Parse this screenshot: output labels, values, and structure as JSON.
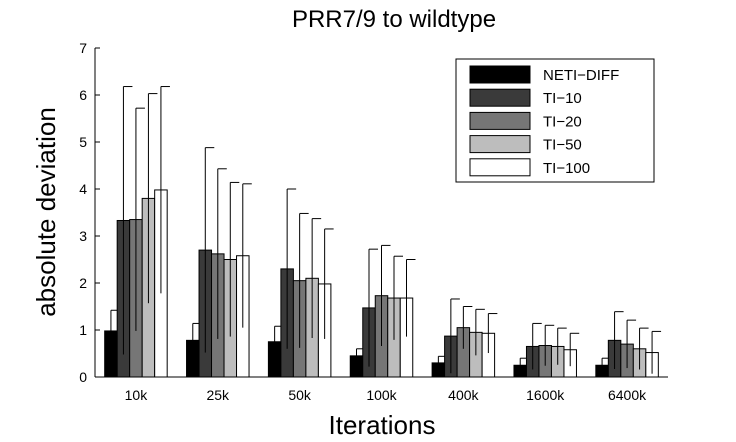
{
  "chart_data": {
    "type": "bar",
    "title": "PRR7/9 to wildtype",
    "xlabel": "Iterations",
    "ylabel": "absolute deviation",
    "ylim": [
      0,
      7
    ],
    "yticks": [
      0,
      1,
      2,
      3,
      4,
      5,
      6,
      7
    ],
    "categories": [
      "10k",
      "25k",
      "50k",
      "100k",
      "400k",
      "1600k",
      "6400k"
    ],
    "legend_position": "top-right",
    "error_bars": true,
    "series": [
      {
        "name": "NETI−DIFF",
        "color": "#000000",
        "values": [
          0.98,
          0.78,
          0.75,
          0.45,
          0.3,
          0.25,
          0.25
        ],
        "upper": [
          1.42,
          1.14,
          1.08,
          0.6,
          0.44,
          0.4,
          0.4
        ]
      },
      {
        "name": "TI−10",
        "color": "#3a3a3a",
        "values": [
          3.33,
          2.7,
          2.3,
          1.47,
          0.87,
          0.65,
          0.78
        ],
        "upper": [
          6.18,
          4.88,
          4.0,
          2.72,
          1.66,
          1.14,
          1.39
        ]
      },
      {
        "name": "TI−20",
        "color": "#767676",
        "values": [
          3.35,
          2.62,
          2.05,
          1.73,
          1.05,
          0.67,
          0.7
        ],
        "upper": [
          5.72,
          4.43,
          3.48,
          2.8,
          1.5,
          1.1,
          1.21
        ]
      },
      {
        "name": "TI−50",
        "color": "#bdbdbd",
        "values": [
          3.8,
          2.5,
          2.1,
          1.68,
          0.95,
          0.65,
          0.6
        ],
        "upper": [
          6.03,
          4.14,
          3.37,
          2.57,
          1.44,
          1.04,
          1.04
        ]
      },
      {
        "name": "TI−100",
        "color": "#ffffff",
        "values": [
          3.98,
          2.58,
          1.98,
          1.68,
          0.93,
          0.58,
          0.52
        ],
        "upper": [
          6.18,
          4.11,
          3.15,
          2.5,
          1.35,
          0.93,
          0.97
        ]
      }
    ]
  }
}
